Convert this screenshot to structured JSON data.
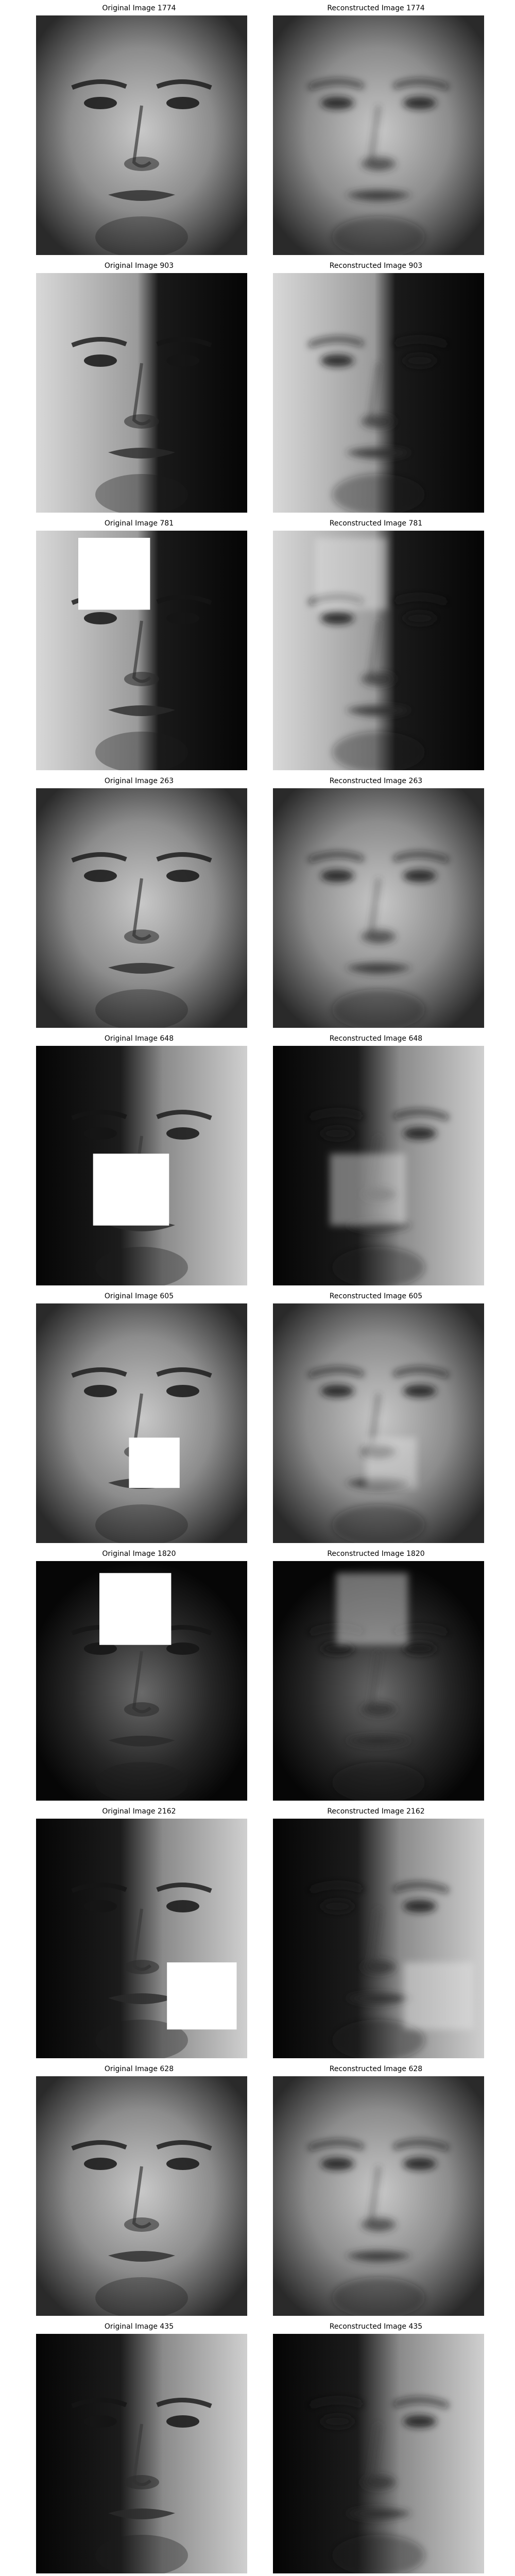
{
  "figure": {
    "rows": [
      {
        "original_title": "Original Image 1774",
        "reconstructed_title": "Reconstructed Image 1774"
      },
      {
        "original_title": "Original Image 903",
        "reconstructed_title": "Reconstructed Image 903"
      },
      {
        "original_title": "Original Image 781",
        "reconstructed_title": "Reconstructed Image 781"
      },
      {
        "original_title": "Original Image 263",
        "reconstructed_title": "Reconstructed Image 263"
      },
      {
        "original_title": "Original Image 648",
        "reconstructed_title": "Reconstructed Image 648"
      },
      {
        "original_title": "Original Image 605",
        "reconstructed_title": "Reconstructed Image 605"
      },
      {
        "original_title": "Original Image 1820",
        "reconstructed_title": "Reconstructed Image 1820"
      },
      {
        "original_title": "Original Image 2162",
        "reconstructed_title": "Reconstructed Image 2162"
      },
      {
        "original_title": "Original Image 628",
        "reconstructed_title": "Reconstructed Image 628"
      },
      {
        "original_title": "Original Image 435",
        "reconstructed_title": "Reconstructed Image 435"
      }
    ]
  }
}
